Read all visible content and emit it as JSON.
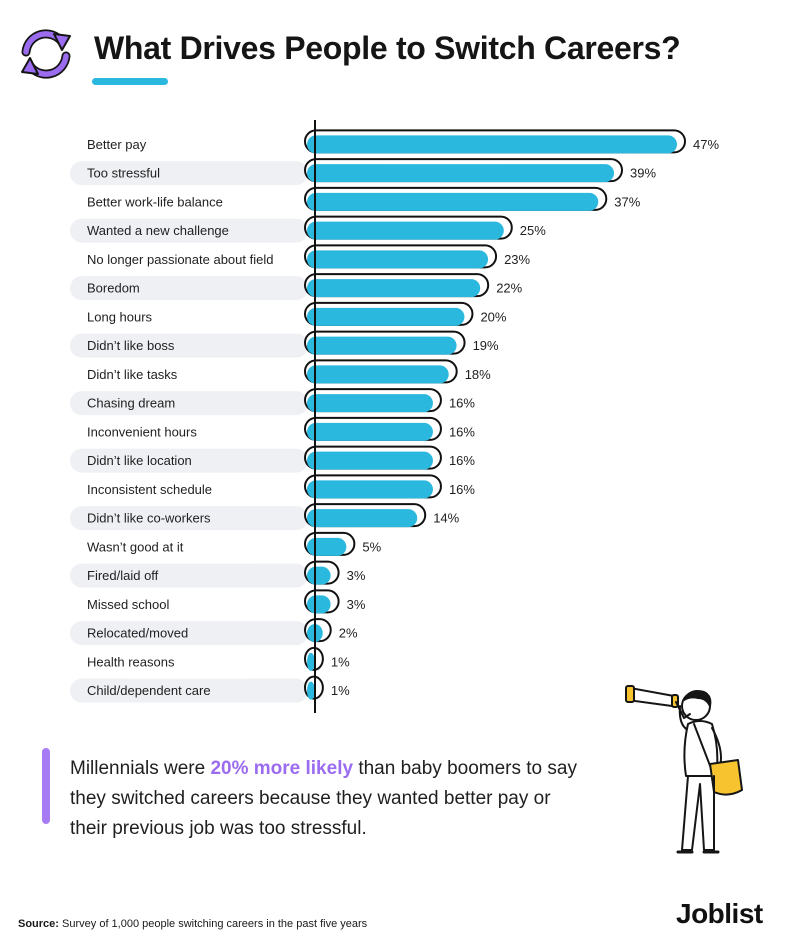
{
  "header": {
    "title": "What Drives People to Switch Careers?",
    "icon": "refresh-cycle-icon",
    "icon_colors": [
      "#9b6cf0",
      "#2bb8df"
    ],
    "underline_color": "#2bb8df"
  },
  "chart_data": {
    "type": "bar",
    "orientation": "horizontal",
    "title": "What Drives People to Switch Careers?",
    "xlabel": "",
    "ylabel": "",
    "xlim": [
      0,
      47
    ],
    "grid": false,
    "value_suffix": "%",
    "bar_color": "#2bb8df",
    "outline_color": "#111111",
    "categories": [
      "Better pay",
      "Too stressful",
      "Better work-life balance",
      "Wanted a new challenge",
      "No longer passionate about field",
      "Boredom",
      "Long hours",
      "Didn’t like boss",
      "Didn’t like tasks",
      "Chasing dream",
      "Inconvenient hours",
      "Didn’t like location",
      "Inconsistent schedule",
      "Didn’t like co-workers",
      "Wasn’t good at it",
      "Fired/laid off",
      "Missed school",
      "Relocated/moved",
      "Health reasons",
      "Child/dependent care"
    ],
    "values": [
      47,
      39,
      37,
      25,
      23,
      22,
      20,
      19,
      18,
      16,
      16,
      16,
      16,
      14,
      5,
      3,
      3,
      2,
      1,
      1
    ],
    "labels": [
      "47%",
      "39%",
      "37%",
      "25%",
      "23%",
      "22%",
      "20%",
      "19%",
      "18%",
      "16%",
      "16%",
      "16%",
      "16%",
      "14%",
      "5%",
      "3%",
      "3%",
      "2%",
      "1%",
      "1%"
    ]
  },
  "callout": {
    "before": "Millennials were ",
    "highlight": "20% more likely",
    "after": " than baby boomers to say they switched careers because they wanted better pay or their previous job was too stressful.",
    "accent_color": "#a77bf3"
  },
  "illustration": {
    "name": "person-with-telescope-illustration",
    "bag_color": "#f7c430"
  },
  "footer": {
    "source_label": "Source:",
    "source_text": "Survey of 1,000 people switching careers in the past five years",
    "brand": "Joblist"
  }
}
